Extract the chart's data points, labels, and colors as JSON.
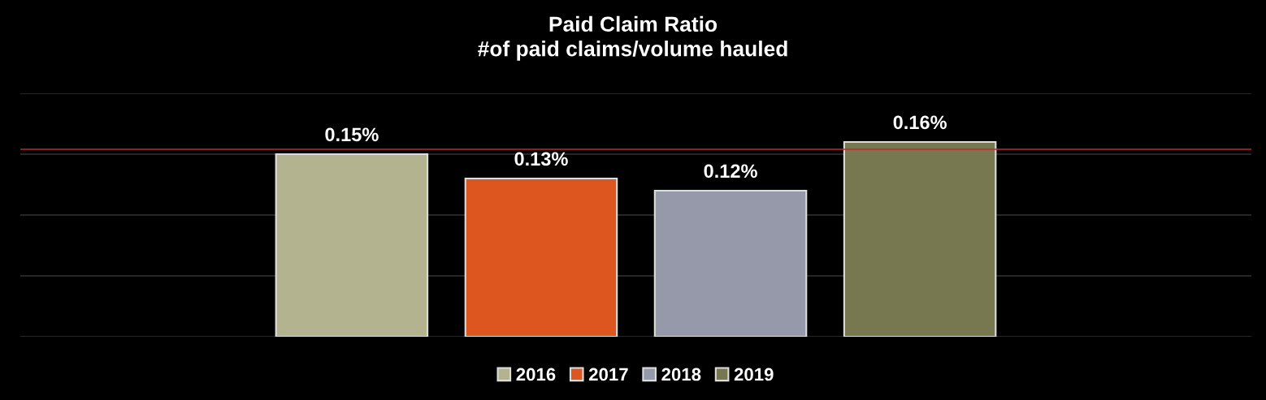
{
  "chart_data": {
    "type": "bar",
    "title": "Paid Claim Ratio\n#of paid claims/volume hauled",
    "categories": [
      null
    ],
    "series": [
      {
        "name": "2016",
        "color": "#b3b38f",
        "values": [
          0.15
        ],
        "value_labels": [
          "0.15%"
        ]
      },
      {
        "name": "2017",
        "color": "#de561f",
        "values": [
          0.13
        ],
        "value_labels": [
          "0.13%"
        ]
      },
      {
        "name": "2018",
        "color": "#9699aa",
        "values": [
          0.12
        ],
        "value_labels": [
          "0.12%"
        ]
      },
      {
        "name": "2019",
        "color": "#77784f",
        "values": [
          0.16
        ],
        "value_labels": [
          "0.16%"
        ]
      }
    ],
    "ref_lines": [
      {
        "axis": "y",
        "value": 0.154,
        "color": "#c0272d"
      }
    ],
    "grid": "y",
    "legend": "bottom",
    "tick_labels": false
  }
}
